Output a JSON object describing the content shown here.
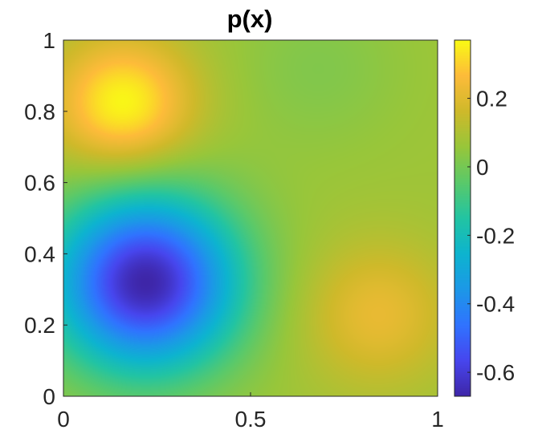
{
  "chart_data": {
    "type": "heatmap",
    "title": "p(x)",
    "xlabel": "",
    "ylabel": "",
    "xlim": [
      0,
      1
    ],
    "ylim": [
      0,
      1
    ],
    "x_ticks": [
      "0",
      "0.5",
      "1"
    ],
    "y_ticks": [
      "0",
      "0.2",
      "0.4",
      "0.6",
      "0.8",
      "1"
    ],
    "colorbar": {
      "range": [
        -0.67,
        0.37
      ],
      "ticks": [
        "0.2",
        "0",
        "-0.2",
        "-0.4",
        "-0.6"
      ],
      "colormap": "parula"
    },
    "features": [
      {
        "x": 0.16,
        "y": 0.82,
        "value": 0.37
      },
      {
        "x": 0.22,
        "y": 0.32,
        "value": -0.67
      },
      {
        "x": 0.84,
        "y": 0.23,
        "value": 0.22
      },
      {
        "x": 0.68,
        "y": 0.92,
        "value": 0.02
      },
      {
        "x": 0.6,
        "y": 0.55,
        "value": 0.07
      }
    ]
  }
}
